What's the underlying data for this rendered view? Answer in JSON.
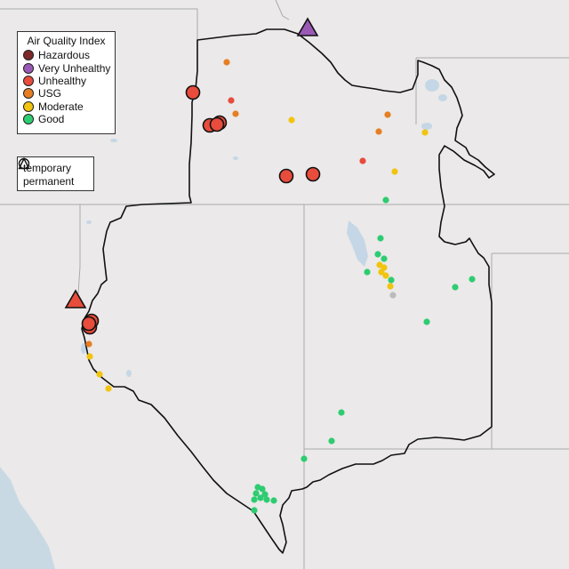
{
  "legend": {
    "title": "Air Quality Index",
    "categories": [
      {
        "label": "Hazardous",
        "color": "#7e2a2a"
      },
      {
        "label": "Very Unhealthy",
        "color": "#9b59b6"
      },
      {
        "label": "Unhealthy",
        "color": "#e74c3c"
      },
      {
        "label": "USG",
        "color": "#e67e22"
      },
      {
        "label": "Moderate",
        "color": "#f1c40f"
      },
      {
        "label": "Good",
        "color": "#2ecc71"
      }
    ],
    "shapes": [
      {
        "label": "temporary",
        "icon": "circle-icon"
      },
      {
        "label": "permanent",
        "icon": "triangle-icon"
      }
    ]
  },
  "markers": [
    {
      "aqi": "Very Unhealthy",
      "type": "permanent"
    },
    {
      "aqi": "Unhealthy",
      "type": "permanent"
    },
    {
      "aqi": "Unhealthy",
      "type": "temporary"
    },
    {
      "aqi": "Unhealthy",
      "type": "temporary"
    },
    {
      "aqi": "Unhealthy",
      "type": "temporary"
    },
    {
      "aqi": "Unhealthy",
      "type": "temporary"
    },
    {
      "aqi": "Unhealthy",
      "type": "temporary"
    },
    {
      "aqi": "Unhealthy",
      "type": "temporary"
    },
    {
      "aqi": "Unhealthy",
      "type": "temporary"
    },
    {
      "aqi": "Unhealthy",
      "type": "temporary"
    },
    {
      "aqi": "Unhealthy",
      "type": "temporary"
    }
  ]
}
